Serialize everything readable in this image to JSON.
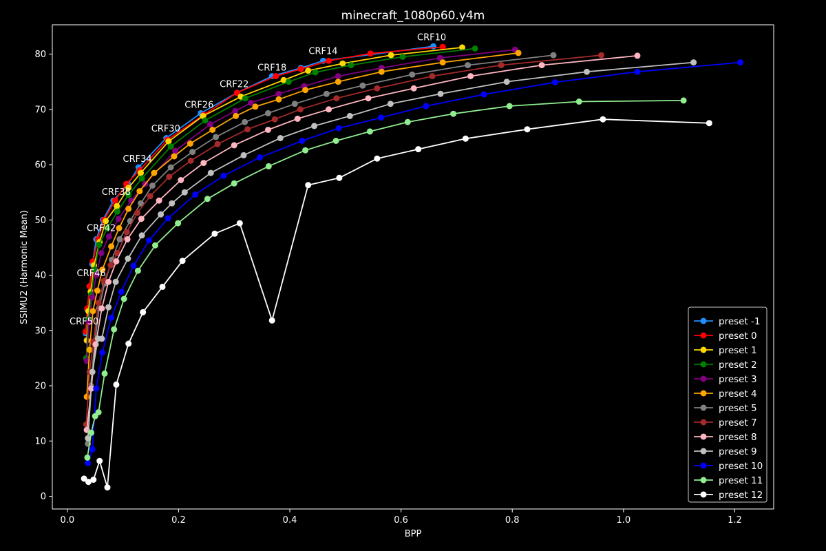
{
  "chart_data": {
    "type": "line",
    "title": "minecraft_1080p60.y4m",
    "xlabel": "BPP",
    "ylabel": "SSIMU2 (Harmonic Mean)",
    "xlim": [
      -0.027,
      1.27
    ],
    "ylim": [
      -2.3,
      85.3
    ],
    "xticks": [
      0.0,
      0.2,
      0.4,
      0.6,
      0.8,
      1.0,
      1.2
    ],
    "xtick_labels": [
      "0.0",
      "0.2",
      "0.4",
      "0.6",
      "0.8",
      "1.0",
      "1.2"
    ],
    "yticks": [
      0,
      10,
      20,
      30,
      40,
      50,
      60,
      70,
      80
    ],
    "ytick_labels": [
      "0",
      "10",
      "20",
      "30",
      "40",
      "50",
      "60",
      "70",
      "80"
    ],
    "grid": false,
    "legend_position": "lower right",
    "annotations": [
      {
        "text": "CRF10",
        "x": 0.655,
        "y": 82.5
      },
      {
        "text": "CRF14",
        "x": 0.46,
        "y": 80.0
      },
      {
        "text": "CRF18",
        "x": 0.368,
        "y": 77.0
      },
      {
        "text": "CRF22",
        "x": 0.3,
        "y": 74.0
      },
      {
        "text": "CRF26",
        "x": 0.237,
        "y": 70.3
      },
      {
        "text": "CRF30",
        "x": 0.177,
        "y": 66.0
      },
      {
        "text": "CRF34",
        "x": 0.126,
        "y": 60.5
      },
      {
        "text": "CRF38",
        "x": 0.088,
        "y": 54.5
      },
      {
        "text": "CRF42",
        "x": 0.061,
        "y": 48.0
      },
      {
        "text": "CRF46",
        "x": 0.043,
        "y": 39.8
      },
      {
        "text": "CRF50",
        "x": 0.03,
        "y": 31.1
      }
    ],
    "series": [
      {
        "name": "preset -1",
        "color": "#1f8fff",
        "x": [
          0.033,
          0.036,
          0.04,
          0.045,
          0.052,
          0.064,
          0.083,
          0.109,
          0.128,
          0.178,
          0.24,
          0.305,
          0.368,
          0.42,
          0.46,
          0.658
        ],
        "y": [
          29.5,
          33.8,
          38.0,
          42.0,
          46.5,
          50.0,
          53.5,
          56.5,
          59.5,
          64.8,
          69.3,
          73.0,
          76.0,
          77.5,
          78.8,
          81.4
        ]
      },
      {
        "name": "preset 0",
        "color": "#ff0000",
        "x": [
          0.033,
          0.036,
          0.04,
          0.046,
          0.055,
          0.066,
          0.086,
          0.106,
          0.13,
          0.18,
          0.245,
          0.305,
          0.375,
          0.42,
          0.47,
          0.545,
          0.675
        ],
        "y": [
          29.8,
          34.0,
          38.0,
          42.5,
          46.5,
          50.0,
          53.5,
          56.5,
          59.0,
          64.5,
          69.0,
          73.0,
          76.0,
          77.3,
          78.8,
          80.1,
          81.3
        ]
      },
      {
        "name": "preset 1",
        "color": "#ffd700",
        "x": [
          0.035,
          0.038,
          0.042,
          0.048,
          0.058,
          0.069,
          0.089,
          0.11,
          0.132,
          0.182,
          0.244,
          0.312,
          0.389,
          0.433,
          0.495,
          0.582,
          0.71
        ],
        "y": [
          28.2,
          33.5,
          37.0,
          41.8,
          46.0,
          49.8,
          52.5,
          55.8,
          58.5,
          64.2,
          68.8,
          72.3,
          75.3,
          77.0,
          78.3,
          79.8,
          81.2
        ]
      },
      {
        "name": "preset 2",
        "color": "#008000",
        "x": [
          0.034,
          0.038,
          0.043,
          0.049,
          0.057,
          0.072,
          0.09,
          0.11,
          0.134,
          0.186,
          0.248,
          0.32,
          0.398,
          0.446,
          0.51,
          0.603,
          0.733
        ],
        "y": [
          25.0,
          32.0,
          36.5,
          41.0,
          45.5,
          48.5,
          51.5,
          54.5,
          57.5,
          63.3,
          68.0,
          72.0,
          75.0,
          76.7,
          78.0,
          79.5,
          81.0
        ]
      },
      {
        "name": "preset 3",
        "color": "#800080",
        "x": [
          0.035,
          0.039,
          0.045,
          0.052,
          0.061,
          0.075,
          0.092,
          0.115,
          0.14,
          0.194,
          0.257,
          0.302,
          0.33,
          0.38,
          0.426,
          0.487,
          0.565,
          0.67,
          0.805
        ],
        "y": [
          24.5,
          31.5,
          36.0,
          40.0,
          44.0,
          47.0,
          50.2,
          53.5,
          56.5,
          62.5,
          67.3,
          69.7,
          71.2,
          72.8,
          74.2,
          76.0,
          77.5,
          79.3,
          80.8
        ]
      },
      {
        "name": "preset 4",
        "color": "#ffa500",
        "x": [
          0.035,
          0.04,
          0.046,
          0.054,
          0.063,
          0.079,
          0.093,
          0.11,
          0.13,
          0.156,
          0.192,
          0.221,
          0.261,
          0.303,
          0.338,
          0.38,
          0.428,
          0.487,
          0.565,
          0.675,
          0.811
        ],
        "y": [
          18.0,
          26.5,
          33.5,
          37.2,
          41.0,
          45.2,
          48.5,
          52.0,
          55.2,
          58.5,
          61.5,
          63.8,
          66.3,
          68.8,
          70.5,
          71.8,
          73.5,
          75.0,
          76.8,
          78.5,
          80.2
        ]
      },
      {
        "name": "preset 5",
        "color": "#808080",
        "x": [
          0.037,
          0.042,
          0.049,
          0.057,
          0.067,
          0.08,
          0.094,
          0.113,
          0.132,
          0.153,
          0.186,
          0.225,
          0.267,
          0.319,
          0.361,
          0.409,
          0.466,
          0.531,
          0.62,
          0.72,
          0.874
        ],
        "y": [
          9.5,
          20.0,
          27.5,
          34.0,
          38.5,
          42.8,
          46.5,
          49.8,
          53.0,
          56.2,
          59.5,
          62.3,
          65.0,
          67.7,
          69.3,
          71.0,
          72.8,
          74.3,
          76.3,
          78.0,
          79.8
        ]
      },
      {
        "name": "preset 7",
        "color": "#a52a2a",
        "x": [
          0.034,
          0.04,
          0.047,
          0.056,
          0.066,
          0.078,
          0.09,
          0.107,
          0.126,
          0.149,
          0.183,
          0.222,
          0.27,
          0.324,
          0.373,
          0.419,
          0.484,
          0.557,
          0.656,
          0.78,
          0.96
        ],
        "y": [
          13.0,
          22.5,
          28.0,
          35.0,
          39.0,
          41.8,
          44.0,
          47.8,
          51.3,
          54.3,
          57.8,
          60.7,
          63.7,
          66.4,
          68.2,
          70.0,
          72.0,
          73.8,
          76.0,
          78.0,
          79.8
        ]
      },
      {
        "name": "preset 8",
        "color": "#ffb6c1",
        "x": [
          0.035,
          0.043,
          0.051,
          0.062,
          0.074,
          0.088,
          0.108,
          0.133,
          0.165,
          0.204,
          0.245,
          0.3,
          0.361,
          0.414,
          0.47,
          0.541,
          0.623,
          0.725,
          0.853,
          1.025
        ],
        "y": [
          12.0,
          19.5,
          27.5,
          34.0,
          38.8,
          42.5,
          46.5,
          50.2,
          53.5,
          57.2,
          60.3,
          63.5,
          66.3,
          68.3,
          70.0,
          72.0,
          73.8,
          76.0,
          78.0,
          79.7
        ]
      },
      {
        "name": "preset 9",
        "color": "#c0c0c0",
        "x": [
          0.037,
          0.045,
          0.055,
          0.062,
          0.074,
          0.087,
          0.109,
          0.134,
          0.168,
          0.188,
          0.211,
          0.258,
          0.317,
          0.383,
          0.444,
          0.508,
          0.581,
          0.671,
          0.79,
          0.934,
          1.126
        ],
        "y": [
          10.5,
          22.5,
          28.5,
          28.5,
          34.2,
          38.8,
          43.0,
          47.2,
          51.0,
          53.0,
          55.0,
          58.5,
          61.7,
          64.8,
          67.0,
          68.8,
          71.0,
          72.8,
          75.0,
          76.8,
          78.5
        ]
      },
      {
        "name": "preset 10",
        "color": "#0000ff",
        "x": [
          0.037,
          0.045,
          0.052,
          0.063,
          0.079,
          0.097,
          0.119,
          0.147,
          0.181,
          0.23,
          0.281,
          0.346,
          0.422,
          0.488,
          0.564,
          0.645,
          0.749,
          0.877,
          1.025,
          1.21
        ],
        "y": [
          6.0,
          8.5,
          19.5,
          26.0,
          32.3,
          37.0,
          41.7,
          46.3,
          50.3,
          54.6,
          58.0,
          61.3,
          64.3,
          66.6,
          68.5,
          70.6,
          72.7,
          74.9,
          76.8,
          78.5
        ]
      },
      {
        "name": "preset 11",
        "color": "#90ee90",
        "x": [
          0.036,
          0.043,
          0.05,
          0.056,
          0.067,
          0.084,
          0.102,
          0.127,
          0.158,
          0.199,
          0.252,
          0.3,
          0.362,
          0.428,
          0.483,
          0.544,
          0.612,
          0.694,
          0.795,
          0.92,
          1.108
        ],
        "y": [
          7.0,
          11.5,
          14.5,
          15.2,
          22.2,
          30.2,
          35.7,
          40.8,
          45.4,
          49.4,
          53.8,
          56.6,
          59.7,
          62.6,
          64.3,
          66.0,
          67.7,
          69.2,
          70.6,
          71.4,
          71.6
        ]
      },
      {
        "name": "preset 12",
        "color": "#ffffff",
        "x": [
          0.03,
          0.038,
          0.047,
          0.058,
          0.072,
          0.088,
          0.11,
          0.136,
          0.171,
          0.207,
          0.265,
          0.31,
          0.368,
          0.433,
          0.489,
          0.557,
          0.631,
          0.716,
          0.827,
          0.963,
          1.154
        ],
        "y": [
          3.2,
          2.6,
          3.0,
          6.4,
          1.6,
          20.2,
          27.6,
          33.3,
          37.9,
          42.6,
          47.5,
          49.4,
          31.8,
          56.3,
          57.6,
          61.1,
          62.8,
          64.7,
          66.4,
          68.2,
          67.5
        ]
      }
    ]
  }
}
